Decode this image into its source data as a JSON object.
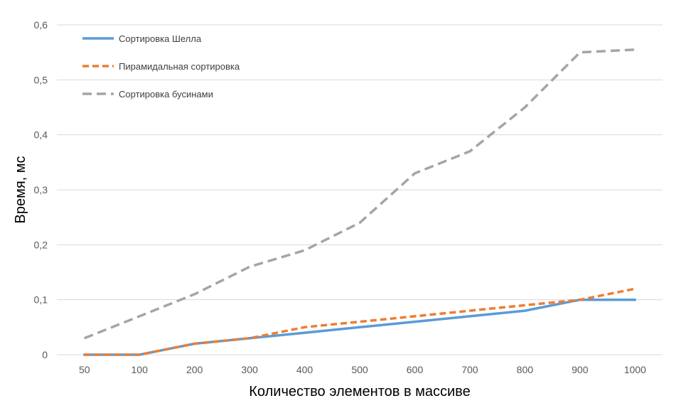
{
  "chart_data": {
    "type": "line",
    "title": "",
    "xlabel": "Количество элементов в массиве",
    "ylabel": "Время, мс",
    "categories": [
      "50",
      "100",
      "200",
      "300",
      "400",
      "500",
      "600",
      "700",
      "800",
      "900",
      "1000"
    ],
    "y_ticks": [
      "0",
      "0,1",
      "0,2",
      "0,3",
      "0,4",
      "0,5",
      "0,6"
    ],
    "ylim": [
      0,
      0.6
    ],
    "grid": true,
    "legend_position": "top-left",
    "series": [
      {
        "name": "Сортировка Шелла",
        "color": "#5b9bd5",
        "style": "solid",
        "values": [
          0,
          0,
          0.02,
          0.03,
          0.04,
          0.05,
          0.06,
          0.07,
          0.08,
          0.1,
          0.1
        ]
      },
      {
        "name": "Пирамидальная сортировка",
        "color": "#ed7d31",
        "style": "dashed",
        "values": [
          0,
          0,
          0.02,
          0.03,
          0.05,
          0.06,
          0.07,
          0.08,
          0.09,
          0.1,
          0.12
        ]
      },
      {
        "name": "Сортировка бусинами",
        "color": "#a5a5a5",
        "style": "dashed",
        "values": [
          0.03,
          0.07,
          0.11,
          0.16,
          0.19,
          0.24,
          0.33,
          0.37,
          0.45,
          0.55,
          0.555
        ]
      }
    ]
  }
}
